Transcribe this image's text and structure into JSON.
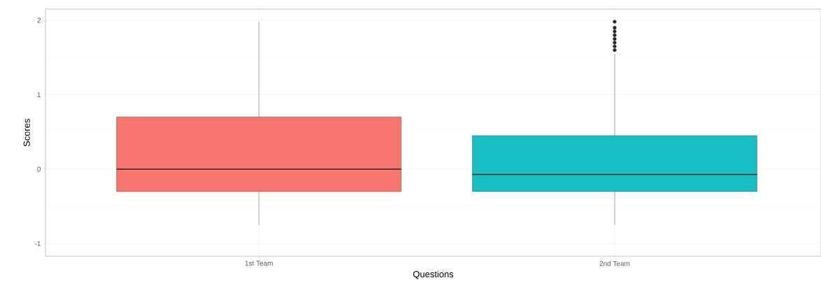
{
  "chart_data": {
    "type": "box",
    "xlabel": "Questions",
    "ylabel": "Scores",
    "categories": [
      "1st Team",
      "2nd Team"
    ],
    "colors": [
      "#f8766d",
      "#17bfc4"
    ],
    "ylim": [
      -1.17,
      2.15
    ],
    "yticks": [
      -1,
      0,
      1,
      2
    ],
    "grid": true,
    "boxes": [
      {
        "low": -0.75,
        "q1": -0.3,
        "median": 0,
        "q3": 0.7,
        "high": 1.98
      },
      {
        "low": -0.75,
        "q1": -0.3,
        "median": -0.07,
        "q3": 0.45,
        "high": 1.55,
        "outliers": [
          1.6,
          1.65,
          1.7,
          1.75,
          1.8,
          1.85,
          1.9,
          1.98
        ]
      }
    ]
  }
}
